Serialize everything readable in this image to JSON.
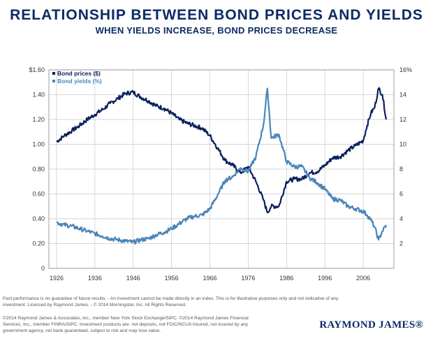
{
  "header": {
    "title": "RELATIONSHIP BETWEEN BOND PRICES AND YIELDS",
    "subtitle": "WHEN YIELDS INCREASE, BOND PRICES DECREASE"
  },
  "chart_data": {
    "type": "line",
    "title": "RELATIONSHIP BETWEEN BOND PRICES AND YIELDS",
    "subtitle": "WHEN YIELDS INCREASE, BOND PRICES DECREASE",
    "xlim": [
      1924,
      2014
    ],
    "x_ticks": [
      "1926",
      "1936",
      "1946",
      "1956",
      "1966",
      "1976",
      "1986",
      "1996",
      "2006"
    ],
    "y_left": {
      "lim": [
        0,
        1.6
      ],
      "ticks": [
        0,
        0.2,
        0.4,
        0.6,
        0.8,
        1.0,
        1.2,
        1.4,
        1.6
      ],
      "tick_labels": [
        "0",
        "0.20",
        "0.40",
        "0.60",
        "0.80",
        "1.00",
        "1.20",
        "1.40",
        "$1.60"
      ]
    },
    "y_right": {
      "lim": [
        0,
        16
      ],
      "ticks": [
        2,
        4,
        6,
        8,
        10,
        12,
        14,
        16
      ],
      "tick_labels": [
        "2",
        "4",
        "6",
        "8",
        "10",
        "12",
        "14",
        "16%"
      ]
    },
    "grid": true,
    "legend_position": "top-left",
    "series": [
      {
        "name": "Bond prices ($)",
        "axis": "left",
        "color": "#0c1f5c",
        "x": [
          1926,
          1928,
          1930,
          1932,
          1934,
          1936,
          1938,
          1940,
          1942,
          1944,
          1946,
          1948,
          1950,
          1952,
          1954,
          1956,
          1958,
          1960,
          1962,
          1964,
          1966,
          1968,
          1970,
          1972,
          1974,
          1976,
          1978,
          1980,
          1981,
          1982,
          1984,
          1986,
          1988,
          1990,
          1992,
          1994,
          1996,
          1998,
          2000,
          2002,
          2004,
          2006,
          2007,
          2008,
          2009,
          2010,
          2011,
          2012
        ],
        "values": [
          1.02,
          1.07,
          1.11,
          1.15,
          1.2,
          1.24,
          1.28,
          1.33,
          1.37,
          1.41,
          1.42,
          1.38,
          1.35,
          1.31,
          1.29,
          1.25,
          1.2,
          1.17,
          1.15,
          1.13,
          1.07,
          0.97,
          0.87,
          0.83,
          0.77,
          0.82,
          0.7,
          0.55,
          0.45,
          0.5,
          0.5,
          0.7,
          0.72,
          0.72,
          0.77,
          0.78,
          0.83,
          0.89,
          0.9,
          0.95,
          0.99,
          1.03,
          1.15,
          1.25,
          1.3,
          1.45,
          1.4,
          1.2
        ]
      },
      {
        "name": "Bond yields (%)",
        "axis": "right",
        "color": "#4a86b8",
        "x": [
          1926,
          1928,
          1930,
          1932,
          1934,
          1936,
          1938,
          1940,
          1942,
          1944,
          1946,
          1948,
          1950,
          1952,
          1954,
          1956,
          1958,
          1960,
          1962,
          1964,
          1966,
          1968,
          1970,
          1972,
          1974,
          1976,
          1978,
          1980,
          1981,
          1982,
          1984,
          1986,
          1988,
          1990,
          1992,
          1994,
          1996,
          1998,
          2000,
          2002,
          2004,
          2006,
          2007,
          2008,
          2009,
          2010,
          2011,
          2012
        ],
        "values": [
          3.7,
          3.5,
          3.4,
          3.2,
          3.0,
          2.8,
          2.6,
          2.4,
          2.3,
          2.2,
          2.1,
          2.3,
          2.4,
          2.7,
          2.9,
          3.2,
          3.6,
          4.0,
          4.2,
          4.3,
          4.8,
          5.9,
          7.1,
          7.4,
          8.1,
          7.8,
          9.0,
          11.6,
          14.5,
          10.5,
          10.8,
          8.6,
          8.2,
          8.2,
          7.3,
          6.9,
          6.4,
          5.6,
          5.5,
          5.0,
          4.8,
          4.6,
          4.3,
          3.9,
          3.3,
          2.3,
          3.0,
          3.5
        ]
      }
    ]
  },
  "footnotes": {
    "disclaimer_line1": "Past performance is no guarantee of future results. - An investment cannot be made directly in an index. This is for illustrative purposes only and not indicative of any",
    "disclaimer_line2": "investment. Licensed by Raymond James. - © 2014 Morningstar, Inc. All Rights Reserved.",
    "legal_line1": "©2014 Raymond James & Associates, Inc., member New York Stock Exchange/SIPC. ©2014 Raymond James Financial",
    "legal_line2": "Services, Inc., member FINRA/SIPC. Investment products are: not deposits, not FDIC/NCUA insured, not insured by any",
    "legal_line3": "government agency, not bank guaranteed, subject to risk and may lose value."
  },
  "brand": {
    "logo_text": "RAYMOND JAMES®"
  }
}
